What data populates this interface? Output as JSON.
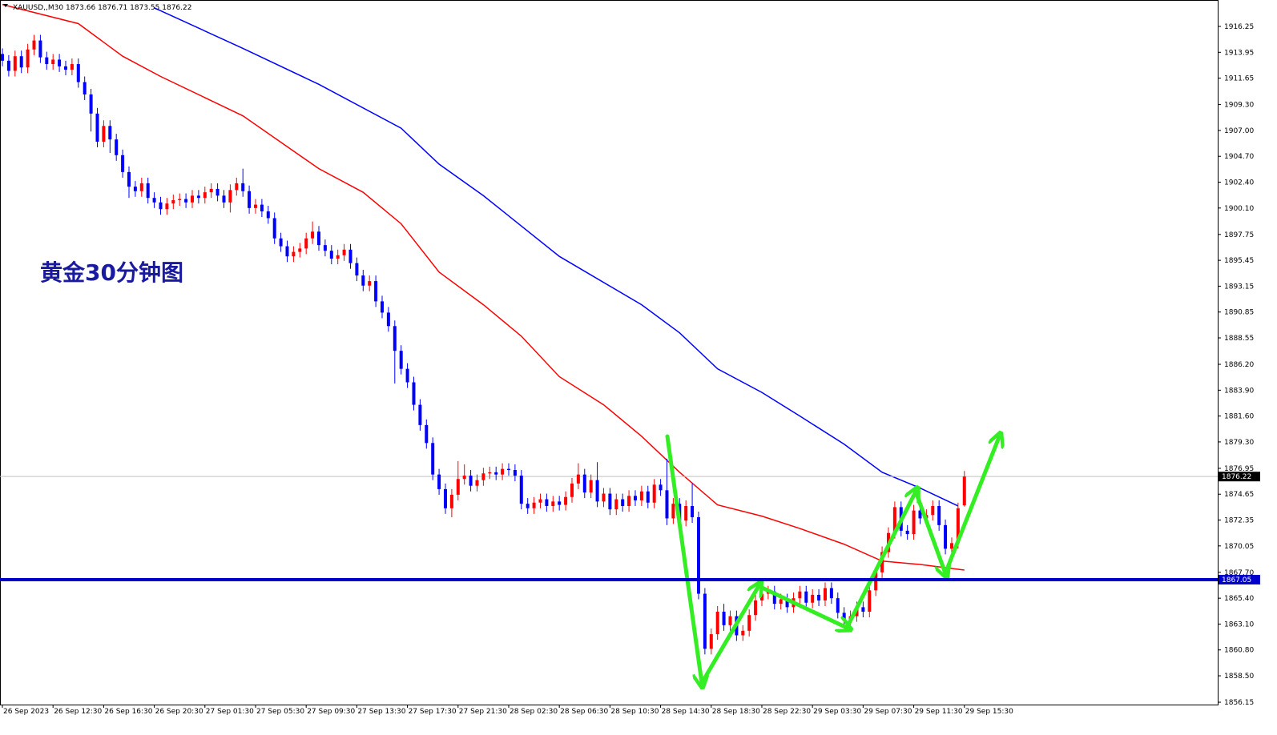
{
  "chart_data": {
    "type": "candlestick",
    "symbol": "XAUUSD,,M30",
    "annotation": "黄金30分钟图",
    "bull_color": "#ff0000",
    "bear_color": "#0000ff",
    "open": [
      1913.8,
      1913.2,
      1912.3,
      1913.6,
      1912.6,
      1914.2,
      1915.0,
      1913.5,
      1912.9,
      1913.3,
      1912.7,
      1912.4,
      1912.9,
      1911.3,
      1910.2,
      1908.5,
      1906.0,
      1907.4,
      1906.2,
      1904.8,
      1903.3,
      1902.0,
      1901.6,
      1902.3,
      1901.0,
      1900.6,
      1900.0,
      1900.5,
      1900.8,
      1900.9,
      1900.6,
      1901.2,
      1901.0,
      1901.5,
      1901.8,
      1901.2,
      1900.6,
      1901.7,
      1902.3,
      1901.6,
      1900.1,
      1900.4,
      1899.8,
      1899.2,
      1897.4,
      1896.7,
      1895.8,
      1896.2,
      1896.5,
      1897.4,
      1898.0,
      1896.8,
      1896.3,
      1895.6,
      1895.9,
      1896.4,
      1895.2,
      1894.1,
      1893.2,
      1893.6,
      1891.8,
      1890.8,
      1889.6,
      1887.4,
      1885.8,
      1884.6,
      1882.6,
      1880.8,
      1879.2,
      1876.4,
      1875.1,
      1873.4,
      1874.6,
      1876.0,
      1876.3,
      1875.4,
      1875.9,
      1876.5,
      1876.6,
      1876.4,
      1876.9,
      1876.8,
      1876.3,
      1873.8,
      1873.4,
      1873.9,
      1874.2,
      1873.6,
      1874.0,
      1873.7,
      1874.4,
      1875.6,
      1876.4,
      1874.8,
      1875.9,
      1874.0,
      1874.7,
      1873.3,
      1874.2,
      1873.6,
      1874.5,
      1874.1,
      1874.9,
      1873.9,
      1875.5,
      1875.0,
      1872.5,
      1873.8,
      1872.3,
      1873.6,
      1872.6,
      1865.8,
      1860.9,
      1862.2,
      1864.2,
      1863.0,
      1863.8,
      1862.1,
      1862.5,
      1863.9,
      1865.2,
      1865.8,
      1866.0,
      1864.9,
      1865.3,
      1864.6,
      1865.4,
      1866.0,
      1865.0,
      1865.7,
      1865.2,
      1866.3,
      1865.4,
      1864.1,
      1863.4,
      1863.8,
      1864.6,
      1864.2,
      1866.1,
      1867.7,
      1869.5,
      1871.2,
      1873.5,
      1871.4,
      1871.1,
      1873.2,
      1872.5,
      1872.8,
      1873.6,
      1871.9,
      1869.8,
      1870.3,
      1873.66
    ],
    "high": [
      1914.3,
      1913.7,
      1914.1,
      1914.1,
      1914.7,
      1915.5,
      1915.5,
      1914.0,
      1913.8,
      1913.8,
      1913.2,
      1913.4,
      1913.4,
      1911.8,
      1910.7,
      1909.0,
      1907.9,
      1907.9,
      1906.7,
      1905.3,
      1903.8,
      1902.5,
      1902.8,
      1902.8,
      1901.5,
      1901.1,
      1901.0,
      1901.3,
      1901.4,
      1901.4,
      1901.7,
      1901.7,
      1902.0,
      1902.3,
      1902.3,
      1901.7,
      1902.2,
      1902.8,
      1903.6,
      1902.1,
      1900.9,
      1900.9,
      1900.3,
      1899.7,
      1897.9,
      1897.2,
      1896.7,
      1897.0,
      1897.9,
      1898.9,
      1898.5,
      1897.3,
      1896.8,
      1896.4,
      1896.9,
      1896.9,
      1895.7,
      1894.6,
      1894.1,
      1894.1,
      1892.3,
      1891.3,
      1890.1,
      1887.9,
      1886.3,
      1885.1,
      1883.1,
      1881.3,
      1879.7,
      1876.9,
      1875.6,
      1875.1,
      1877.6,
      1877.3,
      1876.8,
      1876.4,
      1877.0,
      1877.1,
      1877.1,
      1877.4,
      1877.4,
      1877.3,
      1876.8,
      1874.3,
      1874.4,
      1874.7,
      1874.7,
      1874.5,
      1874.5,
      1874.9,
      1876.1,
      1877.4,
      1876.9,
      1876.4,
      1877.5,
      1875.2,
      1875.2,
      1874.7,
      1874.7,
      1875.0,
      1875.0,
      1875.4,
      1875.4,
      1876.0,
      1876.0,
      1877.8,
      1874.3,
      1874.3,
      1874.1,
      1875.6,
      1873.1,
      1866.3,
      1862.7,
      1864.7,
      1864.9,
      1864.3,
      1864.3,
      1863.0,
      1864.4,
      1865.7,
      1866.3,
      1866.5,
      1866.5,
      1865.8,
      1865.8,
      1865.9,
      1866.5,
      1866.5,
      1866.2,
      1866.2,
      1866.8,
      1866.8,
      1865.9,
      1864.6,
      1864.3,
      1865.1,
      1865.1,
      1866.6,
      1868.2,
      1870.0,
      1871.7,
      1874.0,
      1874.0,
      1871.9,
      1873.7,
      1873.7,
      1873.3,
      1874.1,
      1874.1,
      1872.4,
      1870.8,
      1873.9,
      1876.71
    ],
    "low": [
      1912.7,
      1911.8,
      1911.8,
      1912.1,
      1912.1,
      1913.7,
      1913.0,
      1912.4,
      1912.4,
      1912.2,
      1911.9,
      1911.9,
      1910.8,
      1909.7,
      1906.9,
      1905.5,
      1905.5,
      1905.0,
      1904.3,
      1902.8,
      1901.0,
      1901.1,
      1901.1,
      1900.5,
      1900.1,
      1899.5,
      1899.5,
      1900.0,
      1900.3,
      1900.1,
      1900.1,
      1900.5,
      1900.5,
      1901.0,
      1900.7,
      1900.1,
      1899.7,
      1901.2,
      1901.1,
      1899.6,
      1899.6,
      1899.3,
      1898.7,
      1896.9,
      1896.2,
      1895.3,
      1895.3,
      1895.7,
      1896.0,
      1896.9,
      1896.3,
      1895.8,
      1895.1,
      1895.1,
      1895.4,
      1894.7,
      1893.6,
      1892.7,
      1892.7,
      1891.3,
      1890.3,
      1889.1,
      1884.5,
      1885.3,
      1884.1,
      1882.1,
      1880.3,
      1878.7,
      1875.9,
      1874.6,
      1872.9,
      1872.6,
      1874.1,
      1875.5,
      1874.9,
      1874.9,
      1875.4,
      1876.0,
      1875.9,
      1875.9,
      1876.3,
      1875.8,
      1873.3,
      1872.9,
      1872.9,
      1873.4,
      1873.1,
      1873.1,
      1873.2,
      1873.2,
      1873.9,
      1875.1,
      1874.3,
      1874.3,
      1873.5,
      1873.5,
      1872.8,
      1872.8,
      1873.1,
      1873.1,
      1873.6,
      1873.6,
      1873.4,
      1873.4,
      1874.5,
      1871.9,
      1872.0,
      1871.8,
      1871.8,
      1872.1,
      1865.3,
      1860.4,
      1860.4,
      1861.7,
      1862.5,
      1862.5,
      1861.6,
      1861.6,
      1862.0,
      1863.4,
      1864.7,
      1865.3,
      1864.4,
      1864.4,
      1864.1,
      1864.1,
      1864.9,
      1864.5,
      1864.5,
      1864.7,
      1864.7,
      1864.9,
      1863.6,
      1862.9,
      1862.9,
      1863.3,
      1863.7,
      1863.7,
      1865.6,
      1867.2,
      1869.0,
      1870.7,
      1870.9,
      1870.6,
      1870.6,
      1872.0,
      1872.0,
      1872.3,
      1871.4,
      1869.3,
      1869.3,
      1869.8,
      1873.55
    ],
    "close": [
      1913.2,
      1912.3,
      1913.6,
      1912.6,
      1914.2,
      1915.0,
      1913.5,
      1912.9,
      1913.3,
      1912.7,
      1912.4,
      1912.9,
      1911.3,
      1910.2,
      1908.5,
      1906.0,
      1907.4,
      1906.2,
      1904.8,
      1903.3,
      1902.0,
      1901.6,
      1902.3,
      1901.0,
      1900.6,
      1900.0,
      1900.5,
      1900.8,
      1900.9,
      1900.6,
      1901.2,
      1901.0,
      1901.5,
      1901.8,
      1901.2,
      1900.6,
      1901.7,
      1902.3,
      1901.6,
      1900.1,
      1900.4,
      1899.8,
      1899.2,
      1897.4,
      1896.7,
      1895.8,
      1896.2,
      1896.5,
      1897.4,
      1898.0,
      1896.8,
      1896.3,
      1895.6,
      1895.9,
      1896.4,
      1895.2,
      1894.1,
      1893.2,
      1893.6,
      1891.8,
      1890.8,
      1889.6,
      1887.4,
      1885.8,
      1884.6,
      1882.6,
      1880.8,
      1879.2,
      1876.4,
      1875.1,
      1873.4,
      1874.6,
      1876.0,
      1876.3,
      1875.4,
      1875.9,
      1876.5,
      1876.6,
      1876.4,
      1876.9,
      1876.8,
      1876.3,
      1873.8,
      1873.4,
      1873.9,
      1874.2,
      1873.6,
      1874.0,
      1873.7,
      1874.4,
      1875.6,
      1876.4,
      1874.8,
      1875.9,
      1874.0,
      1874.7,
      1873.3,
      1874.2,
      1873.6,
      1874.5,
      1874.1,
      1874.9,
      1873.9,
      1875.5,
      1875.0,
      1872.5,
      1873.8,
      1872.3,
      1873.6,
      1872.6,
      1865.8,
      1860.9,
      1862.2,
      1864.2,
      1863.0,
      1863.8,
      1862.1,
      1862.5,
      1863.9,
      1865.2,
      1865.8,
      1866.0,
      1864.9,
      1865.3,
      1864.6,
      1865.4,
      1866.0,
      1865.0,
      1865.7,
      1865.2,
      1866.3,
      1865.4,
      1864.1,
      1863.4,
      1863.8,
      1864.6,
      1864.2,
      1866.1,
      1867.7,
      1869.5,
      1871.2,
      1873.5,
      1871.4,
      1871.1,
      1873.2,
      1872.5,
      1872.8,
      1873.6,
      1871.9,
      1869.8,
      1870.3,
      1873.4,
      1876.22
    ],
    "lines": [
      {
        "color": "#ff0000",
        "x": [
          0,
          12,
          19,
          25,
          38,
          50,
          57,
          63,
          69,
          76,
          82,
          88,
          95,
          101,
          107,
          113,
          120,
          126,
          133,
          139,
          145,
          152
        ],
        "values": [
          1918.2,
          1916.5,
          1913.6,
          1911.8,
          1908.3,
          1903.6,
          1901.5,
          1898.7,
          1894.4,
          1891.5,
          1888.7,
          1885.1,
          1882.6,
          1879.8,
          1876.6,
          1873.7,
          1872.7,
          1871.6,
          1870.2,
          1868.7,
          1868.4,
          1867.9
        ]
      },
      {
        "color": "#0000ff",
        "x": [
          24,
          38,
          50,
          63,
          69,
          76,
          88,
          101,
          107,
          113,
          120,
          126,
          133,
          139,
          145,
          151
        ],
        "values": [
          1917.9,
          1914.3,
          1911.1,
          1907.2,
          1904.0,
          1901.2,
          1895.8,
          1891.5,
          1889.0,
          1885.8,
          1883.7,
          1881.6,
          1879.1,
          1876.6,
          1875.2,
          1873.6
        ]
      }
    ],
    "level": {
      "value": 1867.05,
      "color": "#0000cc"
    },
    "last_price_color": "#c0c0c0",
    "xlim": [
      -0.38,
      192.03
    ],
    "ylim": [
      1855.94,
      1918.6
    ],
    "xticks": [
      {
        "value": 0,
        "label": "26 Sep 2023"
      },
      {
        "value": 8,
        "label": "26 Sep 12:30"
      },
      {
        "value": 16,
        "label": "26 Sep 16:30"
      },
      {
        "value": 24,
        "label": "26 Sep 20:30"
      },
      {
        "value": 32,
        "label": "27 Sep 01:30"
      },
      {
        "value": 40,
        "label": "27 Sep 05:30"
      },
      {
        "value": 48,
        "label": "27 Sep 09:30"
      },
      {
        "value": 56,
        "label": "27 Sep 13:30"
      },
      {
        "value": 64,
        "label": "27 Sep 17:30"
      },
      {
        "value": 72,
        "label": "27 Sep 21:30"
      },
      {
        "value": 80,
        "label": "28 Sep 02:30"
      },
      {
        "value": 88,
        "label": "28 Sep 06:30"
      },
      {
        "value": 96,
        "label": "28 Sep 10:30"
      },
      {
        "value": 104,
        "label": "28 Sep 14:30"
      },
      {
        "value": 112,
        "label": "28 Sep 18:30"
      },
      {
        "value": 120,
        "label": "28 Sep 22:30"
      },
      {
        "value": 128,
        "label": "29 Sep 03:30"
      },
      {
        "value": 136,
        "label": "29 Sep 07:30"
      },
      {
        "value": 144,
        "label": "29 Sep 11:30"
      },
      {
        "value": 152,
        "label": "29 Sep 15:30"
      }
    ],
    "yticks": [
      1916.25,
      1913.95,
      1911.65,
      {
        "value": 1909.3,
        "label": "1909.30"
      },
      {
        "value": 1907,
        "label": "1907.00"
      },
      {
        "value": 1904.7,
        "label": "1904.70"
      },
      {
        "value": 1902.4,
        "label": "1902.40"
      },
      {
        "value": 1900.1,
        "label": "1900.10"
      },
      1897.75,
      1895.45,
      1893.15,
      1890.85,
      1888.55,
      {
        "value": 1886.2,
        "label": "1886.20"
      },
      {
        "value": 1883.9,
        "label": "1883.90"
      },
      {
        "value": 1881.6,
        "label": "1881.60"
      },
      {
        "value": 1879.3,
        "label": "1879.30"
      },
      1876.95,
      1874.65,
      1872.35,
      1870.05,
      {
        "value": 1867.7,
        "label": "1867.70"
      },
      {
        "value": 1865.4,
        "label": "1865.40"
      },
      {
        "value": 1863.1,
        "label": "1863.10"
      },
      {
        "value": 1860.8,
        "label": "1860.80"
      },
      {
        "value": 1858.5,
        "label": "1858.50"
      },
      1856.15
    ]
  }
}
